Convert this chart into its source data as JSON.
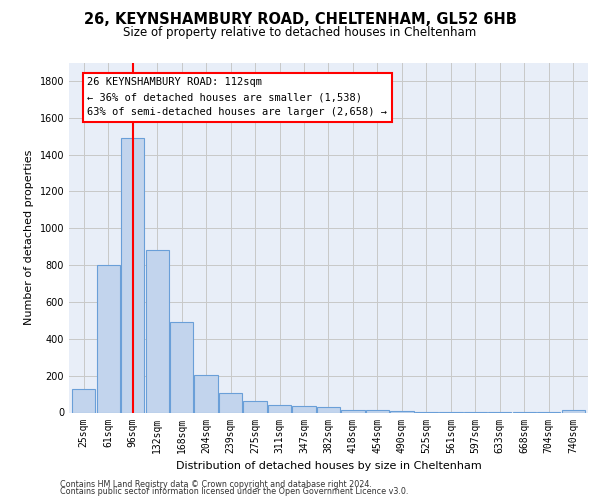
{
  "title1": "26, KEYNSHAMBURY ROAD, CHELTENHAM, GL52 6HB",
  "title2": "Size of property relative to detached houses in Cheltenham",
  "xlabel": "Distribution of detached houses by size in Cheltenham",
  "ylabel": "Number of detached properties",
  "footer1": "Contains HM Land Registry data © Crown copyright and database right 2024.",
  "footer2": "Contains public sector information licensed under the Open Government Licence v3.0.",
  "categories": [
    "25sqm",
    "61sqm",
    "96sqm",
    "132sqm",
    "168sqm",
    "204sqm",
    "239sqm",
    "275sqm",
    "311sqm",
    "347sqm",
    "382sqm",
    "418sqm",
    "454sqm",
    "490sqm",
    "525sqm",
    "561sqm",
    "597sqm",
    "633sqm",
    "668sqm",
    "704sqm",
    "740sqm"
  ],
  "values": [
    125,
    800,
    1490,
    880,
    490,
    205,
    105,
    65,
    40,
    35,
    30,
    15,
    15,
    10,
    5,
    5,
    5,
    5,
    5,
    5,
    15
  ],
  "bar_color": "#c2d4ed",
  "bar_edge_color": "#6a9fd8",
  "red_line_x": 2.0,
  "annot_line0": "26 KEYNSHAMBURY ROAD: 112sqm",
  "annot_line1": "← 36% of detached houses are smaller (1,538)",
  "annot_line2": "63% of semi-detached houses are larger (2,658) →",
  "ylim_max": 1900,
  "yticks": [
    0,
    200,
    400,
    600,
    800,
    1000,
    1200,
    1400,
    1600,
    1800
  ],
  "grid_color": "#c8c8c8",
  "bg_color": "#e8eef8",
  "annot_fontsize": 7.5,
  "tick_fontsize": 7,
  "ylabel_fontsize": 8,
  "xlabel_fontsize": 8
}
